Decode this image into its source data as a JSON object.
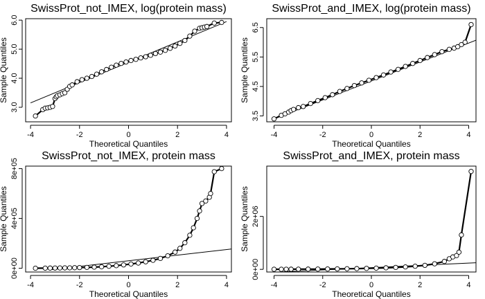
{
  "chart_data": [
    {
      "type": "scatter",
      "title": "SwissProt_not_IMEX, log(protein mass)",
      "xlabel": "Theoretical Quantiles",
      "ylabel": "Sample Quantiles",
      "xlim": [
        -4.2,
        4.2
      ],
      "ylim": [
        2.5,
        6.05
      ],
      "xticks": [
        -4,
        -2,
        0,
        2,
        4
      ],
      "xtick_labels": [
        "-4",
        "-2",
        "0",
        "2",
        "4"
      ],
      "yticks": [
        3.0,
        4.0,
        5.0,
        6.0
      ],
      "ytick_labels": [
        "3.0",
        "4.0",
        "5.0",
        "6.0"
      ],
      "qq_line": {
        "x": [
          -4,
          4
        ],
        "y": [
          3.15,
          5.95
        ]
      },
      "points": [
        {
          "x": -3.8,
          "y": 2.7
        },
        {
          "x": -3.5,
          "y": 2.92
        },
        {
          "x": -3.4,
          "y": 2.97
        },
        {
          "x": -3.3,
          "y": 2.98
        },
        {
          "x": -3.2,
          "y": 3.0
        },
        {
          "x": -3.1,
          "y": 3.03
        },
        {
          "x": -3.0,
          "y": 3.3
        },
        {
          "x": -2.95,
          "y": 3.36
        },
        {
          "x": -2.9,
          "y": 3.4
        },
        {
          "x": -2.8,
          "y": 3.43
        },
        {
          "x": -2.7,
          "y": 3.47
        },
        {
          "x": -2.6,
          "y": 3.5
        },
        {
          "x": -2.5,
          "y": 3.62
        },
        {
          "x": -2.4,
          "y": 3.72
        },
        {
          "x": -2.3,
          "y": 3.77
        },
        {
          "x": -2.1,
          "y": 3.88
        },
        {
          "x": -1.9,
          "y": 3.95
        },
        {
          "x": -1.7,
          "y": 4.0
        },
        {
          "x": -1.5,
          "y": 4.06
        },
        {
          "x": -1.3,
          "y": 4.14
        },
        {
          "x": -1.1,
          "y": 4.22
        },
        {
          "x": -0.9,
          "y": 4.3
        },
        {
          "x": -0.7,
          "y": 4.38
        },
        {
          "x": -0.5,
          "y": 4.45
        },
        {
          "x": -0.3,
          "y": 4.51
        },
        {
          "x": -0.1,
          "y": 4.56
        },
        {
          "x": 0.1,
          "y": 4.61
        },
        {
          "x": 0.3,
          "y": 4.65
        },
        {
          "x": 0.5,
          "y": 4.7
        },
        {
          "x": 0.7,
          "y": 4.74
        },
        {
          "x": 0.9,
          "y": 4.79
        },
        {
          "x": 1.1,
          "y": 4.85
        },
        {
          "x": 1.3,
          "y": 4.9
        },
        {
          "x": 1.5,
          "y": 4.96
        },
        {
          "x": 1.7,
          "y": 5.03
        },
        {
          "x": 1.9,
          "y": 5.11
        },
        {
          "x": 2.1,
          "y": 5.2
        },
        {
          "x": 2.3,
          "y": 5.3
        },
        {
          "x": 2.5,
          "y": 5.45
        },
        {
          "x": 2.7,
          "y": 5.62
        },
        {
          "x": 2.9,
          "y": 5.72
        },
        {
          "x": 3.0,
          "y": 5.74
        },
        {
          "x": 3.1,
          "y": 5.76
        },
        {
          "x": 3.2,
          "y": 5.78
        },
        {
          "x": 3.5,
          "y": 5.9
        },
        {
          "x": 3.8,
          "y": 5.92
        }
      ]
    },
    {
      "type": "scatter",
      "title": "SwissProt_and_IMEX, log(protein mass)",
      "xlabel": "Theoretical Quantiles",
      "ylabel": "Sample Quantiles",
      "xlim": [
        -4.3,
        4.3
      ],
      "ylim": [
        3.3,
        6.8
      ],
      "xticks": [
        -4,
        -2,
        0,
        2,
        4
      ],
      "xtick_labels": [
        "-4",
        "-2",
        "0",
        "2",
        "4"
      ],
      "yticks": [
        3.5,
        4.5,
        5.5,
        6.5
      ],
      "ytick_labels": [
        "3.5",
        "4.5",
        "5.5",
        "6.5"
      ],
      "qq_line": {
        "x": [
          -4,
          4.3
        ],
        "y": [
          3.4,
          6.07
        ]
      },
      "points": [
        {
          "x": -4.0,
          "y": 3.4
        },
        {
          "x": -3.7,
          "y": 3.52
        },
        {
          "x": -3.55,
          "y": 3.57
        },
        {
          "x": -3.4,
          "y": 3.63
        },
        {
          "x": -3.3,
          "y": 3.68
        },
        {
          "x": -3.2,
          "y": 3.72
        },
        {
          "x": -3.0,
          "y": 3.78
        },
        {
          "x": -2.8,
          "y": 3.82
        },
        {
          "x": -2.5,
          "y": 3.92
        },
        {
          "x": -2.2,
          "y": 4.02
        },
        {
          "x": -1.9,
          "y": 4.12
        },
        {
          "x": -1.6,
          "y": 4.22
        },
        {
          "x": -1.3,
          "y": 4.33
        },
        {
          "x": -1.0,
          "y": 4.43
        },
        {
          "x": -0.7,
          "y": 4.53
        },
        {
          "x": -0.4,
          "y": 4.62
        },
        {
          "x": -0.1,
          "y": 4.71
        },
        {
          "x": 0.2,
          "y": 4.8
        },
        {
          "x": 0.5,
          "y": 4.89
        },
        {
          "x": 0.8,
          "y": 4.99
        },
        {
          "x": 1.1,
          "y": 5.08
        },
        {
          "x": 1.4,
          "y": 5.18
        },
        {
          "x": 1.7,
          "y": 5.28
        },
        {
          "x": 2.0,
          "y": 5.38
        },
        {
          "x": 2.3,
          "y": 5.48
        },
        {
          "x": 2.6,
          "y": 5.58
        },
        {
          "x": 2.9,
          "y": 5.68
        },
        {
          "x": 3.2,
          "y": 5.76
        },
        {
          "x": 3.4,
          "y": 5.8
        },
        {
          "x": 3.55,
          "y": 5.85
        },
        {
          "x": 3.7,
          "y": 5.92
        },
        {
          "x": 3.85,
          "y": 6.0
        },
        {
          "x": 4.1,
          "y": 6.6
        }
      ]
    },
    {
      "type": "scatter",
      "title": "SwissProt_not_IMEX, protein mass",
      "xlabel": "Theoretical Quantiles",
      "ylabel": "Sample Quantiles",
      "xlim": [
        -4.2,
        4.2
      ],
      "ylim": [
        -30000,
        820000
      ],
      "xticks": [
        -4,
        -2,
        0,
        2,
        4
      ],
      "xtick_labels": [
        "-4",
        "-2",
        "0",
        "2",
        "4"
      ],
      "yticks": [
        0,
        400000,
        800000
      ],
      "ytick_labels": [
        "0e+00",
        "4e+05",
        "8e+05"
      ],
      "qq_line": {
        "x": [
          -3.2,
          4.2
        ],
        "y": [
          -12000,
          155000
        ]
      },
      "points": [
        {
          "x": -3.8,
          "y": 400
        },
        {
          "x": -3.4,
          "y": 1000
        },
        {
          "x": -3.2,
          "y": 1500
        },
        {
          "x": -3.0,
          "y": 2000
        },
        {
          "x": -2.8,
          "y": 2500
        },
        {
          "x": -2.6,
          "y": 3000
        },
        {
          "x": -2.4,
          "y": 3500
        },
        {
          "x": -2.2,
          "y": 4500
        },
        {
          "x": -2.0,
          "y": 5500
        },
        {
          "x": -1.7,
          "y": 7000
        },
        {
          "x": -1.4,
          "y": 9000
        },
        {
          "x": -1.1,
          "y": 12000
        },
        {
          "x": -0.8,
          "y": 16000
        },
        {
          "x": -0.5,
          "y": 21000
        },
        {
          "x": -0.2,
          "y": 27000
        },
        {
          "x": 0.1,
          "y": 34000
        },
        {
          "x": 0.4,
          "y": 42000
        },
        {
          "x": 0.7,
          "y": 52000
        },
        {
          "x": 1.0,
          "y": 64000
        },
        {
          "x": 1.3,
          "y": 79000
        },
        {
          "x": 1.6,
          "y": 100000
        },
        {
          "x": 1.9,
          "y": 130000
        },
        {
          "x": 2.1,
          "y": 160000
        },
        {
          "x": 2.3,
          "y": 205000
        },
        {
          "x": 2.5,
          "y": 265000
        },
        {
          "x": 2.65,
          "y": 325000
        },
        {
          "x": 2.8,
          "y": 400000
        },
        {
          "x": 2.9,
          "y": 460000
        },
        {
          "x": 3.0,
          "y": 520000
        },
        {
          "x": 3.15,
          "y": 540000
        },
        {
          "x": 3.3,
          "y": 570000
        },
        {
          "x": 3.35,
          "y": 600000
        },
        {
          "x": 3.5,
          "y": 775000
        },
        {
          "x": 3.8,
          "y": 800000
        }
      ]
    },
    {
      "type": "scatter",
      "title": "SwissProt_and_IMEX, protein mass",
      "xlabel": "Theoretical Quantiles",
      "ylabel": "Sample Quantiles",
      "xlim": [
        -4.3,
        4.3
      ],
      "ylim": [
        -100000,
        3900000
      ],
      "xticks": [
        -4,
        -2,
        0,
        2,
        4
      ],
      "xtick_labels": [
        "-4",
        "-2",
        "0",
        "2",
        "4"
      ],
      "yticks": [
        0,
        2000000
      ],
      "ytick_labels": [
        "0e+00",
        "2e+06"
      ],
      "qq_line": {
        "x": [
          -4.3,
          4.3
        ],
        "y": [
          -120000,
          250000
        ]
      },
      "points": [
        {
          "x": -4.0,
          "y": 3000
        },
        {
          "x": -3.7,
          "y": 4000
        },
        {
          "x": -3.5,
          "y": 5000
        },
        {
          "x": -3.3,
          "y": 6000
        },
        {
          "x": -3.0,
          "y": 7000
        },
        {
          "x": -2.6,
          "y": 9000
        },
        {
          "x": -2.2,
          "y": 11000
        },
        {
          "x": -1.8,
          "y": 14000
        },
        {
          "x": -1.4,
          "y": 18000
        },
        {
          "x": -1.0,
          "y": 23000
        },
        {
          "x": -0.6,
          "y": 29000
        },
        {
          "x": -0.2,
          "y": 37000
        },
        {
          "x": 0.2,
          "y": 46000
        },
        {
          "x": 0.6,
          "y": 58000
        },
        {
          "x": 1.0,
          "y": 73000
        },
        {
          "x": 1.4,
          "y": 92000
        },
        {
          "x": 1.8,
          "y": 118000
        },
        {
          "x": 2.2,
          "y": 152000
        },
        {
          "x": 2.6,
          "y": 210000
        },
        {
          "x": 3.0,
          "y": 300000
        },
        {
          "x": 3.2,
          "y": 400000
        },
        {
          "x": 3.35,
          "y": 470000
        },
        {
          "x": 3.5,
          "y": 520000
        },
        {
          "x": 3.6,
          "y": 650000
        },
        {
          "x": 3.7,
          "y": 1300000
        },
        {
          "x": 4.1,
          "y": 3700000
        }
      ]
    }
  ]
}
